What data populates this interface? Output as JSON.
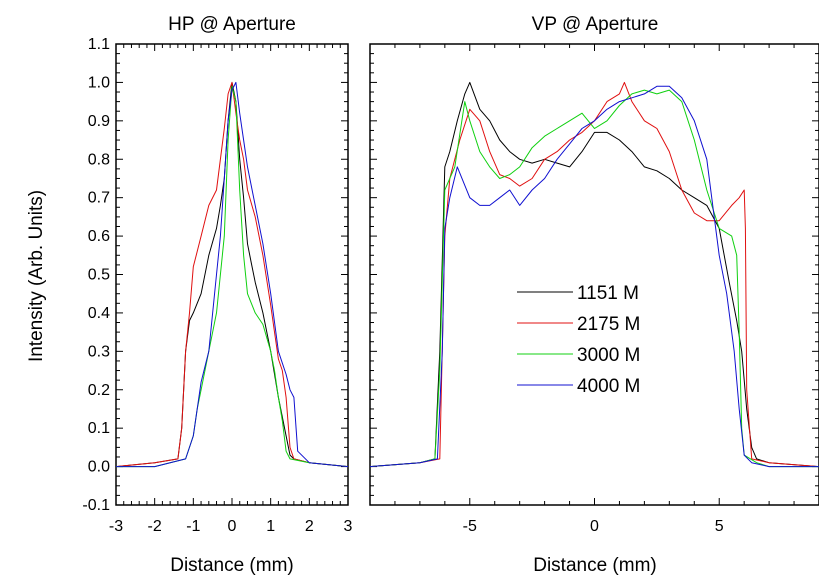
{
  "ylabel": "Intensity (Arb. Units)",
  "colors": {
    "black": "#000000",
    "red": "#e01010",
    "green": "#10d010",
    "blue": "#1010d0"
  },
  "chart_data": [
    {
      "type": "line",
      "title": "HP @ Aperture",
      "xlabel": "Distance (mm)",
      "ylabel": "Intensity (Arb. Units)",
      "xlim": [
        -3,
        3
      ],
      "ylim": [
        -0.1,
        1.1
      ],
      "xticks": [
        -3,
        -2,
        -1,
        0,
        1,
        2,
        3
      ],
      "xtick_labels": [
        "-3",
        "-2",
        "-1",
        "0",
        "1",
        "2",
        "3"
      ],
      "yticks": [
        -0.1,
        0.0,
        0.1,
        0.2,
        0.3,
        0.4,
        0.5,
        0.6,
        0.7,
        0.8,
        0.9,
        1.0,
        1.1
      ],
      "ytick_labels": [
        "-0.1",
        "0.0",
        "0.1",
        "0.2",
        "0.3",
        "0.4",
        "0.5",
        "0.6",
        "0.7",
        "0.8",
        "0.9",
        "1.0",
        "1.1"
      ],
      "series": [
        {
          "name": "1151 M",
          "color": "#000000",
          "x": [
            -3,
            -2,
            -1.4,
            -1.3,
            -1.2,
            -1.1,
            -1.0,
            -0.8,
            -0.6,
            -0.4,
            -0.3,
            -0.2,
            -0.1,
            0.0,
            0.1,
            0.2,
            0.3,
            0.4,
            0.5,
            0.6,
            0.8,
            1.0,
            1.2,
            1.4,
            1.5,
            1.6,
            2.0,
            3.0
          ],
          "y": [
            0.0,
            0.01,
            0.02,
            0.1,
            0.3,
            0.38,
            0.4,
            0.45,
            0.55,
            0.62,
            0.68,
            0.75,
            0.9,
            1.0,
            0.95,
            0.8,
            0.7,
            0.58,
            0.53,
            0.48,
            0.4,
            0.3,
            0.18,
            0.08,
            0.03,
            0.02,
            0.01,
            0.0
          ]
        },
        {
          "name": "2175 M",
          "color": "#e01010",
          "x": [
            -3,
            -2,
            -1.4,
            -1.3,
            -1.2,
            -1.1,
            -1.0,
            -0.8,
            -0.6,
            -0.4,
            -0.2,
            -0.1,
            0.0,
            0.1,
            0.2,
            0.3,
            0.4,
            0.6,
            0.8,
            1.0,
            1.1,
            1.2,
            1.3,
            1.4,
            1.5,
            1.6,
            2.0,
            3.0
          ],
          "y": [
            0.0,
            0.01,
            0.02,
            0.1,
            0.3,
            0.4,
            0.52,
            0.6,
            0.68,
            0.72,
            0.88,
            0.97,
            1.0,
            0.92,
            0.85,
            0.8,
            0.72,
            0.65,
            0.55,
            0.42,
            0.35,
            0.28,
            0.25,
            0.18,
            0.05,
            0.02,
            0.01,
            0.0
          ]
        },
        {
          "name": "3000 M",
          "color": "#10d010",
          "x": [
            -3,
            -2,
            -1.2,
            -1.0,
            -0.9,
            -0.8,
            -0.6,
            -0.4,
            -0.2,
            -0.1,
            0.0,
            0.1,
            0.2,
            0.3,
            0.4,
            0.6,
            0.8,
            1.0,
            1.1,
            1.2,
            1.3,
            1.4,
            1.5,
            2.0,
            3.0
          ],
          "y": [
            0.0,
            0.0,
            0.02,
            0.08,
            0.15,
            0.2,
            0.3,
            0.4,
            0.6,
            0.85,
            0.99,
            0.95,
            0.72,
            0.55,
            0.45,
            0.4,
            0.37,
            0.3,
            0.25,
            0.18,
            0.12,
            0.04,
            0.02,
            0.01,
            0.0
          ]
        },
        {
          "name": "4000 M",
          "color": "#1010d0",
          "x": [
            -3,
            -2,
            -1.2,
            -1.0,
            -0.9,
            -0.8,
            -0.6,
            -0.4,
            -0.3,
            -0.2,
            -0.1,
            0.0,
            0.1,
            0.2,
            0.3,
            0.4,
            0.6,
            0.8,
            1.0,
            1.2,
            1.4,
            1.5,
            1.6,
            1.7,
            2.0,
            3.0
          ],
          "y": [
            0.0,
            0.0,
            0.02,
            0.08,
            0.15,
            0.22,
            0.3,
            0.5,
            0.6,
            0.75,
            0.9,
            0.98,
            1.0,
            0.92,
            0.85,
            0.78,
            0.68,
            0.58,
            0.45,
            0.3,
            0.24,
            0.2,
            0.18,
            0.04,
            0.01,
            0.0
          ]
        }
      ]
    },
    {
      "type": "line",
      "title": "VP @ Aperture",
      "xlabel": "Distance (mm)",
      "xlim": [
        -9,
        9
      ],
      "ylim": [
        -0.1,
        1.1
      ],
      "xticks": [
        -5,
        0,
        5
      ],
      "xtick_labels": [
        "-5",
        "0",
        "5"
      ],
      "yticks": [
        -0.1,
        0.0,
        0.1,
        0.2,
        0.3,
        0.4,
        0.5,
        0.6,
        0.7,
        0.8,
        0.9,
        1.0,
        1.1
      ],
      "legend": {
        "position": "center"
      },
      "series": [
        {
          "name": "1151 M",
          "color": "#000000",
          "x": [
            -9,
            -7,
            -6.4,
            -6.2,
            -6.0,
            -5.8,
            -5.5,
            -5.2,
            -5.0,
            -4.6,
            -4.2,
            -3.8,
            -3.4,
            -3.0,
            -2.5,
            -2.0,
            -1.5,
            -1.0,
            -0.5,
            0.0,
            0.5,
            1.0,
            1.5,
            2.0,
            2.5,
            3.0,
            3.5,
            4.0,
            4.5,
            5.0,
            5.4,
            5.7,
            5.9,
            6.1,
            6.3,
            6.5,
            7.0,
            9.0
          ],
          "y": [
            0.0,
            0.01,
            0.02,
            0.3,
            0.78,
            0.82,
            0.9,
            0.97,
            1.0,
            0.93,
            0.9,
            0.85,
            0.82,
            0.8,
            0.79,
            0.8,
            0.79,
            0.78,
            0.82,
            0.87,
            0.87,
            0.85,
            0.82,
            0.78,
            0.77,
            0.75,
            0.72,
            0.7,
            0.68,
            0.62,
            0.48,
            0.38,
            0.3,
            0.15,
            0.05,
            0.02,
            0.01,
            0.0
          ]
        },
        {
          "name": "2175 M",
          "color": "#e01010",
          "x": [
            -9,
            -7,
            -6.2,
            -6.0,
            -5.8,
            -5.6,
            -5.4,
            -5.0,
            -4.6,
            -4.2,
            -3.8,
            -3.4,
            -3.0,
            -2.5,
            -2.0,
            -1.5,
            -1.0,
            -0.5,
            0.0,
            0.5,
            1.0,
            1.2,
            1.5,
            2.0,
            2.5,
            3.0,
            3.5,
            4.0,
            4.5,
            5.0,
            5.5,
            5.8,
            6.0,
            6.05,
            6.1,
            6.3,
            7.0,
            9.0
          ],
          "y": [
            0.0,
            0.01,
            0.02,
            0.6,
            0.75,
            0.8,
            0.85,
            0.93,
            0.9,
            0.82,
            0.76,
            0.75,
            0.73,
            0.75,
            0.8,
            0.82,
            0.85,
            0.87,
            0.9,
            0.95,
            0.97,
            1.0,
            0.95,
            0.9,
            0.88,
            0.82,
            0.72,
            0.66,
            0.64,
            0.64,
            0.68,
            0.7,
            0.72,
            0.62,
            0.2,
            0.02,
            0.01,
            0.0
          ]
        },
        {
          "name": "3000 M",
          "color": "#10d010",
          "x": [
            -9,
            -7,
            -6.4,
            -6.2,
            -6.0,
            -5.6,
            -5.2,
            -5.0,
            -4.6,
            -4.2,
            -3.8,
            -3.4,
            -3.0,
            -2.5,
            -2.0,
            -1.5,
            -1.0,
            -0.5,
            0.0,
            0.5,
            1.0,
            1.5,
            2.0,
            2.5,
            3.0,
            3.5,
            4.0,
            4.5,
            5.0,
            5.5,
            5.7,
            5.8,
            5.9,
            6.0,
            6.5,
            7.0,
            9.0
          ],
          "y": [
            0.0,
            0.01,
            0.02,
            0.25,
            0.72,
            0.78,
            0.95,
            0.9,
            0.82,
            0.78,
            0.75,
            0.76,
            0.78,
            0.83,
            0.86,
            0.88,
            0.9,
            0.92,
            0.88,
            0.9,
            0.94,
            0.97,
            0.98,
            0.97,
            0.98,
            0.95,
            0.85,
            0.72,
            0.62,
            0.6,
            0.55,
            0.35,
            0.1,
            0.03,
            0.01,
            0.0,
            0.0
          ]
        },
        {
          "name": "4000 M",
          "color": "#1010d0",
          "x": [
            -9,
            -7,
            -6.3,
            -6.1,
            -6.0,
            -5.8,
            -5.5,
            -5.0,
            -4.6,
            -4.2,
            -3.8,
            -3.4,
            -3.0,
            -2.5,
            -2.0,
            -1.5,
            -1.0,
            -0.5,
            0.0,
            0.5,
            1.0,
            1.5,
            2.0,
            2.5,
            3.0,
            3.5,
            4.0,
            4.5,
            4.8,
            5.0,
            5.3,
            5.6,
            5.8,
            6.0,
            6.3,
            7.0,
            9.0
          ],
          "y": [
            0.0,
            0.01,
            0.02,
            0.3,
            0.62,
            0.7,
            0.78,
            0.7,
            0.68,
            0.68,
            0.7,
            0.72,
            0.68,
            0.72,
            0.75,
            0.8,
            0.84,
            0.88,
            0.9,
            0.93,
            0.95,
            0.96,
            0.97,
            0.99,
            0.99,
            0.96,
            0.9,
            0.8,
            0.65,
            0.55,
            0.45,
            0.3,
            0.15,
            0.03,
            0.01,
            0.0,
            0.0
          ]
        }
      ]
    }
  ]
}
